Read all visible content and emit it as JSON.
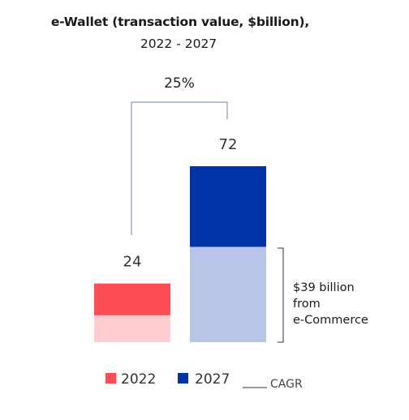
{
  "title": "e-Wallet (transaction value, $billion),",
  "subtitle": "2022 - 2027",
  "cagr_label": "25%",
  "annotation": [
    "$39 billion",
    "from",
    "e-Commerce"
  ],
  "legend": {
    "items": [
      {
        "label": "2022",
        "color": "#ff4d57"
      },
      {
        "label": "2027",
        "color": "#0033a8"
      }
    ],
    "cagr_text": "CAGR"
  },
  "colors": {
    "bar_2022_top": "#ff4d57",
    "bar_2022_bottom": "#ffcdd0",
    "bar_2027_top": "#0033a8",
    "bar_2027_bottom": "#b9c5e8",
    "connector": "#6b86a8",
    "bracket": "#333333"
  },
  "chart_data": {
    "type": "bar",
    "categories": [
      "2022",
      "2027"
    ],
    "totals": [
      24,
      72
    ],
    "total_labels": [
      "24",
      "72"
    ],
    "series": [
      {
        "values": [
          11,
          39
        ],
        "colors": [
          "#ffcdd0",
          "#b9c5e8"
        ]
      },
      {
        "values": [
          13,
          33
        ],
        "colors": [
          "#ff4d57",
          "#0033a8"
        ]
      }
    ],
    "cagr": "25%",
    "ylim": [
      0,
      72
    ],
    "grid": false,
    "legend_position": "bottom"
  }
}
